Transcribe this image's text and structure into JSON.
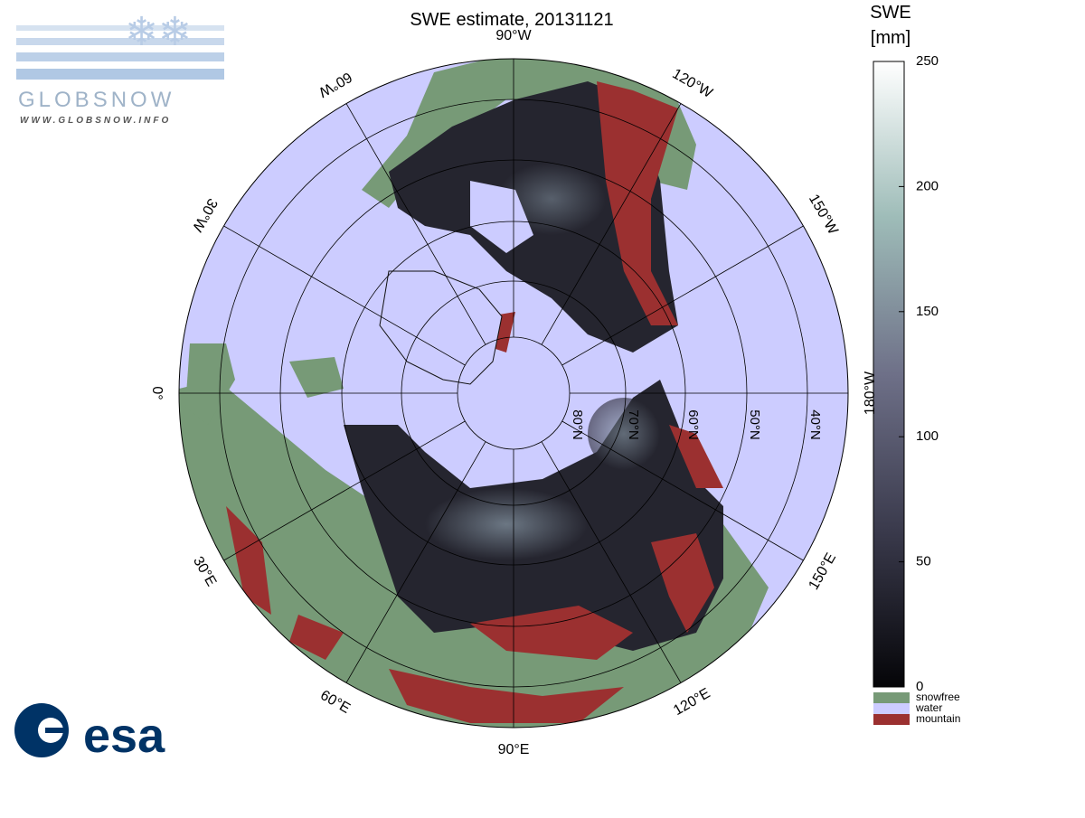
{
  "header": {
    "title": "SWE estimate, 20131121",
    "logo_text": "GLOBSNOW",
    "logo_url": "WWW.GLOBSNOW.INFO",
    "esa": "esa"
  },
  "map": {
    "meridian_labels": [
      "90°W",
      "120°W",
      "150°W",
      "180°W",
      "150°E",
      "120°E",
      "90°E",
      "60°E",
      "30°E",
      "0°",
      "30°W",
      "60°W"
    ],
    "parallel_labels": [
      "80°N",
      "70°N",
      "60°N",
      "50°N",
      "40°N"
    ]
  },
  "colorbar": {
    "label": [
      "SWE",
      "[mm]"
    ],
    "lim": [
      0,
      250
    ],
    "ticks": [
      0,
      50,
      100,
      150,
      200,
      250
    ],
    "legend": [
      {
        "name": "snowfree",
        "color": "#779a77"
      },
      {
        "name": "water",
        "color": "#ccccff"
      },
      {
        "name": "mountain",
        "color": "#9b3030"
      }
    ]
  }
}
